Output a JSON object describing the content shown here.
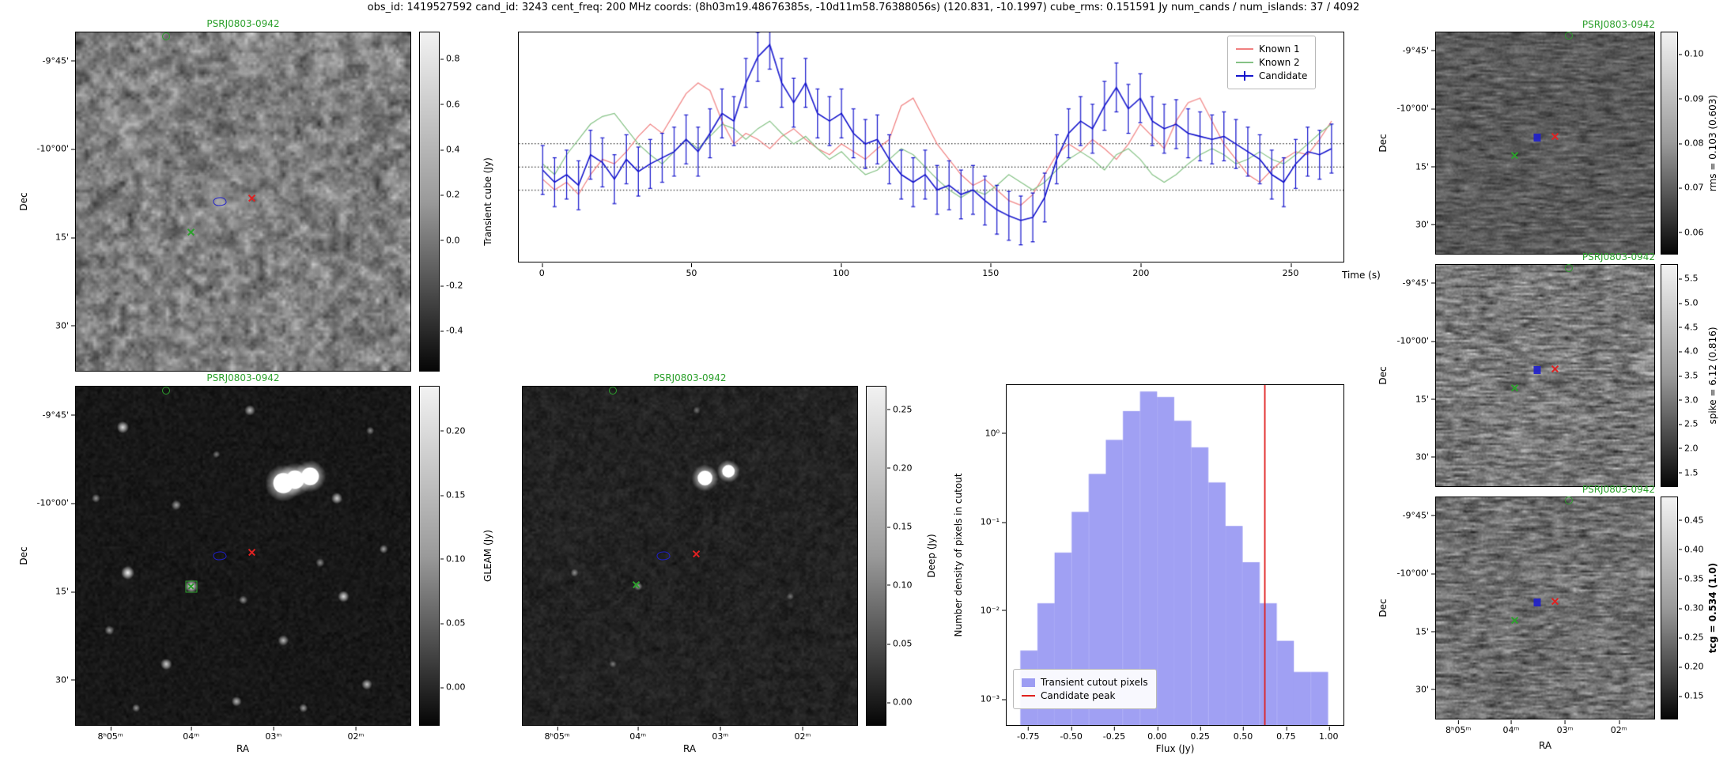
{
  "header": {
    "title": "obs_id: 1419527592 cand_id: 3243 cent_freq: 200 MHz coords: (8h03m19.48676385s, -10d11m58.76388056s) (120.831, -10.1997) cube_rms: 0.151591 Jy num_cands / num_islands: 37 / 4092"
  },
  "axes": {
    "dec_label": "Dec",
    "ra_label": "RA",
    "dec_ticks": [
      {
        "label": "-9°45'",
        "pos": 0.085
      },
      {
        "label": "-10°00'",
        "pos": 0.345
      },
      {
        "label": "15'",
        "pos": 0.605
      },
      {
        "label": "30'",
        "pos": 0.865
      }
    ],
    "ra_ticks": [
      {
        "label": "8ʰ05ᵐ",
        "pos": 0.105
      },
      {
        "label": "04ᵐ",
        "pos": 0.345
      },
      {
        "label": "03ᵐ",
        "pos": 0.59
      },
      {
        "label": "02ᵐ",
        "pos": 0.835
      }
    ]
  },
  "panels": {
    "transient": {
      "title": "PSRJ0803-0942",
      "colorbar_label": "Transient cube (Jy)",
      "colorbar_ticks": [
        {
          "label": "0.8",
          "pos": 0.08
        },
        {
          "label": "0.6",
          "pos": 0.213
        },
        {
          "label": "0.4",
          "pos": 0.347
        },
        {
          "label": "0.2",
          "pos": 0.48
        },
        {
          "label": "0.0",
          "pos": 0.613
        },
        {
          "label": "-0.2",
          "pos": 0.747
        },
        {
          "label": "-0.4",
          "pos": 0.88
        }
      ]
    },
    "gleam": {
      "title": "PSRJ0803-0942",
      "colorbar_label": "GLEAM (Jy)",
      "colorbar_ticks": [
        {
          "label": "0.20",
          "pos": 0.132
        },
        {
          "label": "0.15",
          "pos": 0.321
        },
        {
          "label": "0.10",
          "pos": 0.509
        },
        {
          "label": "0.05",
          "pos": 0.698
        },
        {
          "label": "0.00",
          "pos": 0.887
        }
      ]
    },
    "deep": {
      "title": "PSRJ0803-0942",
      "colorbar_label": "Deep (Jy)",
      "colorbar_ticks": [
        {
          "label": "0.25",
          "pos": 0.069
        },
        {
          "label": "0.20",
          "pos": 0.241
        },
        {
          "label": "0.15",
          "pos": 0.414
        },
        {
          "label": "0.10",
          "pos": 0.586
        },
        {
          "label": "0.05",
          "pos": 0.759
        },
        {
          "label": "0.00",
          "pos": 0.931
        }
      ]
    },
    "rms": {
      "title": "PSRJ0803-0942",
      "colorbar_label": "rms = 0.103 (0.603)",
      "colorbar_ticks": [
        {
          "label": "0.10",
          "pos": 0.1
        },
        {
          "label": "0.09",
          "pos": 0.3
        },
        {
          "label": "0.08",
          "pos": 0.5
        },
        {
          "label": "0.07",
          "pos": 0.7
        },
        {
          "label": "0.06",
          "pos": 0.9
        }
      ]
    },
    "spike": {
      "title": "PSRJ0803-0942",
      "colorbar_label": "spike = 6.12 (0.816)",
      "colorbar_ticks": [
        {
          "label": "5.5",
          "pos": 0.065
        },
        {
          "label": "5.0",
          "pos": 0.174
        },
        {
          "label": "4.5",
          "pos": 0.283
        },
        {
          "label": "4.0",
          "pos": 0.391
        },
        {
          "label": "3.5",
          "pos": 0.5
        },
        {
          "label": "3.0",
          "pos": 0.609
        },
        {
          "label": "2.5",
          "pos": 0.717
        },
        {
          "label": "2.0",
          "pos": 0.826
        },
        {
          "label": "1.5",
          "pos": 0.935
        }
      ]
    },
    "tcg": {
      "title": "PSRJ0803-0942",
      "colorbar_label": "tcg = 0.534 (1.0)",
      "colorbar_ticks": [
        {
          "label": "0.45",
          "pos": 0.105
        },
        {
          "label": "0.40",
          "pos": 0.237
        },
        {
          "label": "0.35",
          "pos": 0.368
        },
        {
          "label": "0.30",
          "pos": 0.5
        },
        {
          "label": "0.25",
          "pos": 0.632
        },
        {
          "label": "0.20",
          "pos": 0.763
        },
        {
          "label": "0.15",
          "pos": 0.895
        }
      ]
    }
  },
  "markers": {
    "transient": [
      {
        "type": "circle",
        "color": "#2ca02c",
        "x": 0.27,
        "y": 0.012,
        "name": "known-source-circle"
      },
      {
        "type": "contour",
        "color": "#2020cc",
        "x": 0.43,
        "y": 0.5,
        "name": "candidate-contour"
      },
      {
        "type": "cross",
        "color": "#dd2222",
        "x": 0.525,
        "y": 0.49,
        "name": "candidate-cross"
      },
      {
        "type": "cross",
        "color": "#2ca02c",
        "x": 0.345,
        "y": 0.59,
        "name": "known-source-cross"
      }
    ],
    "gleam": [
      {
        "type": "circle",
        "color": "#2ca02c",
        "x": 0.27,
        "y": 0.012,
        "name": "known-source-circle"
      },
      {
        "type": "contour",
        "color": "#2020cc",
        "x": 0.43,
        "y": 0.5,
        "name": "candidate-contour"
      },
      {
        "type": "cross",
        "color": "#dd2222",
        "x": 0.525,
        "y": 0.49,
        "name": "candidate-cross"
      },
      {
        "type": "boxed-cross",
        "color": "#2ca02c",
        "x": 0.345,
        "y": 0.59,
        "name": "known-source-boxed-cross"
      }
    ],
    "deep": [
      {
        "type": "circle",
        "color": "#2ca02c",
        "x": 0.27,
        "y": 0.012,
        "name": "known-source-circle"
      },
      {
        "type": "contour",
        "color": "#2020cc",
        "x": 0.42,
        "y": 0.5,
        "name": "candidate-contour"
      },
      {
        "type": "cross",
        "color": "#dd2222",
        "x": 0.52,
        "y": 0.493,
        "name": "candidate-cross"
      },
      {
        "type": "cross",
        "color": "#2ca02c",
        "x": 0.34,
        "y": 0.585,
        "name": "known-source-cross"
      }
    ],
    "aux": [
      {
        "type": "circle",
        "color": "#2ca02c",
        "x": 0.61,
        "y": 0.015,
        "name": "known-source-circle"
      },
      {
        "type": "triangle",
        "color": "#2020cc",
        "x": 0.465,
        "y": 0.475,
        "name": "candidate-arrow"
      },
      {
        "type": "cross",
        "color": "#dd2222",
        "x": 0.545,
        "y": 0.468,
        "name": "candidate-cross"
      },
      {
        "type": "cross",
        "color": "#2ca02c",
        "x": 0.36,
        "y": 0.555,
        "name": "known-source-cross"
      }
    ]
  },
  "chart_data": [
    {
      "type": "line",
      "title": "",
      "xlabel": "Time (s)",
      "ylabel": "",
      "xlim": [
        -8,
        268
      ],
      "ylim": [
        -0.62,
        0.88
      ],
      "hlines": [
        0.152,
        0.0,
        -0.152
      ],
      "legend_position": "upper right",
      "xtick_items": [
        {
          "label": "0",
          "pos": 0.029
        },
        {
          "label": "50",
          "pos": 0.21
        },
        {
          "label": "100",
          "pos": 0.391
        },
        {
          "label": "150",
          "pos": 0.572
        },
        {
          "label": "200",
          "pos": 0.754
        },
        {
          "label": "250",
          "pos": 0.935
        }
      ],
      "x": [
        0,
        4,
        8,
        12,
        16,
        20,
        24,
        28,
        32,
        36,
        40,
        44,
        48,
        52,
        56,
        60,
        64,
        68,
        72,
        76,
        80,
        84,
        88,
        92,
        96,
        100,
        104,
        108,
        112,
        116,
        120,
        124,
        128,
        132,
        136,
        140,
        144,
        148,
        152,
        156,
        160,
        164,
        168,
        172,
        176,
        180,
        184,
        188,
        192,
        196,
        200,
        204,
        208,
        212,
        216,
        220,
        224,
        228,
        232,
        236,
        240,
        244,
        248,
        252,
        256,
        260,
        264
      ],
      "series": [
        {
          "name": "Known 1",
          "color": "#f08080",
          "y": [
            -0.08,
            -0.15,
            -0.1,
            -0.18,
            -0.05,
            0.05,
            0.02,
            0.1,
            0.2,
            0.28,
            0.22,
            0.35,
            0.48,
            0.55,
            0.5,
            0.3,
            0.15,
            0.22,
            0.18,
            0.12,
            0.2,
            0.25,
            0.18,
            0.12,
            0.08,
            0.15,
            0.1,
            0.05,
            0.12,
            0.18,
            0.4,
            0.45,
            0.3,
            0.15,
            0.05,
            -0.05,
            -0.12,
            -0.08,
            -0.15,
            -0.22,
            -0.25,
            -0.18,
            -0.05,
            0.08,
            0.15,
            0.1,
            0.18,
            0.12,
            0.05,
            0.15,
            0.28,
            0.2,
            0.12,
            0.3,
            0.42,
            0.45,
            0.3,
            0.15,
            0.05,
            -0.05,
            -0.1,
            -0.02,
            0.05,
            0.1,
            0.08,
            0.18,
            0.3
          ]
        },
        {
          "name": "Known 2",
          "color": "#85c285",
          "y": [
            0.02,
            -0.05,
            0.08,
            0.18,
            0.28,
            0.33,
            0.35,
            0.25,
            0.15,
            0.08,
            0.02,
            0.1,
            0.18,
            0.12,
            0.2,
            0.28,
            0.25,
            0.18,
            0.25,
            0.3,
            0.22,
            0.15,
            0.2,
            0.12,
            0.05,
            0.1,
            0.02,
            -0.05,
            -0.02,
            0.05,
            0.12,
            0.08,
            0.0,
            -0.08,
            -0.15,
            -0.2,
            -0.15,
            -0.18,
            -0.12,
            -0.05,
            -0.1,
            -0.15,
            -0.1,
            -0.02,
            0.05,
            0.1,
            0.05,
            -0.02,
            0.08,
            0.12,
            0.05,
            -0.05,
            -0.1,
            -0.05,
            0.02,
            0.08,
            0.12,
            0.08,
            0.02,
            0.05,
            0.1,
            0.05,
            0.02,
            0.08,
            0.15,
            0.22,
            0.28
          ]
        },
        {
          "name": "Candidate",
          "color": "#1414cc",
          "yerr": 0.16,
          "y": [
            -0.02,
            -0.1,
            -0.05,
            -0.12,
            0.08,
            0.03,
            -0.08,
            0.05,
            -0.03,
            0.02,
            0.06,
            0.1,
            0.18,
            0.1,
            0.22,
            0.35,
            0.3,
            0.55,
            0.72,
            0.8,
            0.55,
            0.42,
            0.55,
            0.35,
            0.3,
            0.35,
            0.22,
            0.15,
            0.18,
            0.05,
            -0.05,
            -0.1,
            -0.05,
            -0.15,
            -0.12,
            -0.18,
            -0.15,
            -0.22,
            -0.28,
            -0.32,
            -0.35,
            -0.33,
            -0.2,
            0.05,
            0.22,
            0.3,
            0.25,
            0.4,
            0.52,
            0.38,
            0.45,
            0.3,
            0.25,
            0.28,
            0.22,
            0.2,
            0.18,
            0.2,
            0.15,
            0.1,
            0.05,
            -0.05,
            -0.1,
            0.02,
            0.1,
            0.08,
            0.12
          ]
        }
      ]
    },
    {
      "type": "bar",
      "title": "",
      "xlabel": "Flux (Jy)",
      "ylabel": "Number density of pixels in cutout",
      "yscale": "log",
      "bin_width": 0.1,
      "bin_centers": [
        -0.75,
        -0.65,
        -0.55,
        -0.45,
        -0.35,
        -0.25,
        -0.15,
        -0.05,
        0.05,
        0.15,
        0.25,
        0.35,
        0.45,
        0.55,
        0.65,
        0.75,
        0.85,
        0.95
      ],
      "densities": [
        0.0035,
        0.012,
        0.045,
        0.13,
        0.35,
        0.85,
        1.8,
        3.0,
        2.6,
        1.4,
        0.7,
        0.28,
        0.09,
        0.035,
        0.012,
        0.0045,
        0.002,
        0.002
      ],
      "candidate_peak": 0.63,
      "bar_color": "#8585f0",
      "line_color": "#e02020",
      "legend": [
        "Transient cutout pixels",
        "Candidate peak"
      ],
      "legend_position": "lower left",
      "xlim": [
        -0.88,
        1.09
      ],
      "ylim_log": [
        -3.3,
        0.55
      ],
      "xtick_items": [
        {
          "label": "-0.75",
          "pos": 0.066
        },
        {
          "label": "-0.50",
          "pos": 0.193
        },
        {
          "label": "-0.25",
          "pos": 0.32
        },
        {
          "label": "0.00",
          "pos": 0.447
        },
        {
          "label": "0.25",
          "pos": 0.574
        },
        {
          "label": "0.50",
          "pos": 0.701
        },
        {
          "label": "0.75",
          "pos": 0.828
        },
        {
          "label": "1.00",
          "pos": 0.954
        }
      ],
      "ytick_items": [
        {
          "label": "10⁰",
          "pos": 0.143
        },
        {
          "label": "10⁻¹",
          "pos": 0.403
        },
        {
          "label": "10⁻²",
          "pos": 0.662
        },
        {
          "label": "10⁻³",
          "pos": 0.922
        }
      ]
    }
  ]
}
